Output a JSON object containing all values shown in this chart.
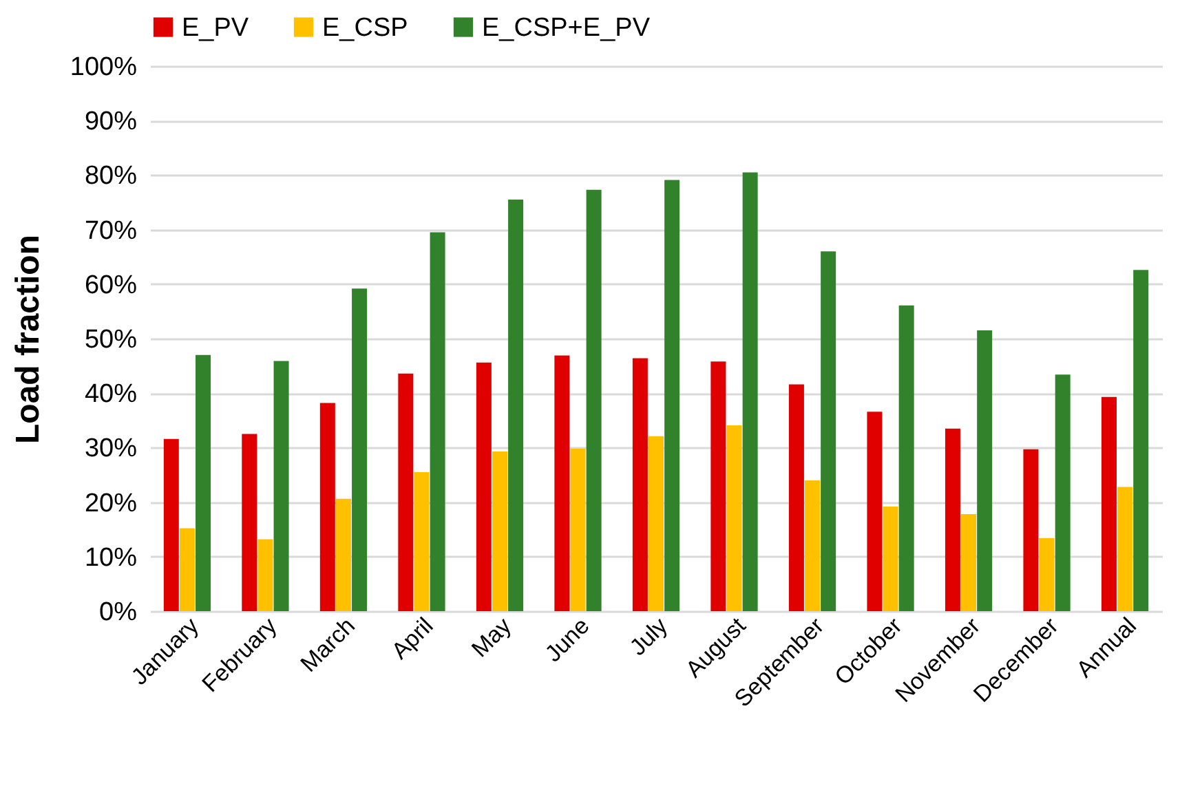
{
  "chart_data": {
    "type": "bar",
    "ylabel": "Load fraction",
    "categories": [
      "January",
      "February",
      "March",
      "April",
      "May",
      "June",
      "July",
      "August",
      "September",
      "October",
      "November",
      "December",
      "Annual"
    ],
    "series": [
      {
        "name": "E_PV",
        "color": "#e00000",
        "values": [
          31.6,
          32.5,
          38.2,
          43.6,
          45.6,
          46.9,
          46.4,
          45.8,
          41.6,
          36.6,
          33.5,
          29.7,
          39.3
        ]
      },
      {
        "name": "E_CSP",
        "color": "#ffc000",
        "values": [
          15.2,
          13.2,
          20.6,
          25.5,
          29.3,
          29.8,
          32.1,
          34.1,
          24.0,
          19.2,
          17.8,
          13.4,
          22.8
        ]
      },
      {
        "name": "E_CSP+E_PV",
        "color": "#31822b",
        "values": [
          47.0,
          45.9,
          59.2,
          69.5,
          75.5,
          77.3,
          79.1,
          80.5,
          66.0,
          56.1,
          51.5,
          43.4,
          62.6
        ]
      }
    ],
    "ylim": [
      0,
      100
    ],
    "yticks": [
      {
        "value": 0,
        "label": "0%"
      },
      {
        "value": 10,
        "label": "10%"
      },
      {
        "value": 20,
        "label": "20%"
      },
      {
        "value": 30,
        "label": "30%"
      },
      {
        "value": 40,
        "label": "40%"
      },
      {
        "value": 50,
        "label": "50%"
      },
      {
        "value": 60,
        "label": "60%"
      },
      {
        "value": 70,
        "label": "70%"
      },
      {
        "value": 80,
        "label": "80%"
      },
      {
        "value": 90,
        "label": "90%"
      },
      {
        "value": 100,
        "label": "100%"
      }
    ],
    "grid": "y",
    "legend": "top"
  }
}
